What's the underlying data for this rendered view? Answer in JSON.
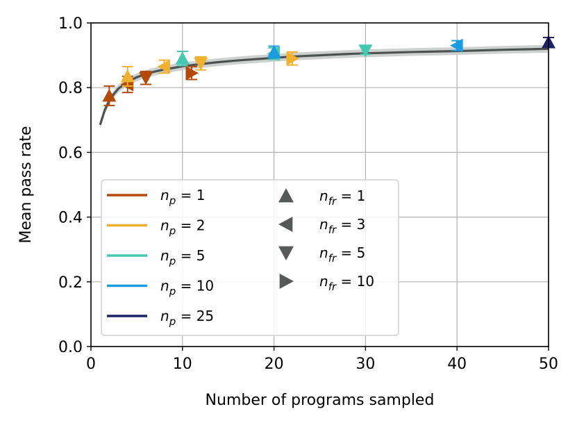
{
  "chart_data": {
    "type": "line",
    "xlabel": "Number of programs sampled",
    "ylabel": "Mean pass rate",
    "xlim": [
      0,
      50
    ],
    "ylim": [
      0.0,
      1.0
    ],
    "xticks": [
      0,
      10,
      20,
      30,
      40,
      50
    ],
    "yticks": [
      0.0,
      0.2,
      0.4,
      0.6,
      0.8,
      1.0
    ],
    "ytick_labels": [
      "0.0",
      "0.2",
      "0.4",
      "0.6",
      "0.8",
      "1.0"
    ],
    "grid": true,
    "legend_position": "lower-left",
    "trend": {
      "name": "fit",
      "color": "#4d5250",
      "band_color": "#c8cccb",
      "x": [
        1,
        1.5,
        2,
        2.5,
        3,
        4,
        5,
        6,
        7,
        8,
        9,
        10,
        12,
        14,
        16,
        18,
        20,
        22,
        25,
        28,
        30,
        35,
        40,
        45,
        50
      ],
      "y": [
        0.685,
        0.73,
        0.76,
        0.78,
        0.797,
        0.818,
        0.832,
        0.842,
        0.85,
        0.856,
        0.861,
        0.866,
        0.873,
        0.879,
        0.884,
        0.888,
        0.892,
        0.896,
        0.9,
        0.904,
        0.906,
        0.91,
        0.913,
        0.917,
        0.92
      ],
      "band": 0.012
    },
    "np_colors": {
      "1": "#b34a0a",
      "2": "#f0b030",
      "5": "#45c9b3",
      "10": "#1b9be0",
      "25": "#1a2466"
    },
    "points": [
      {
        "x": 2,
        "y": 0.775,
        "err": 0.03,
        "np": "1",
        "nfr": "1",
        "marker": "up"
      },
      {
        "x": 4,
        "y": 0.81,
        "err": 0.025,
        "np": "1",
        "nfr": "3",
        "marker": "left"
      },
      {
        "x": 6,
        "y": 0.83,
        "err": 0.02,
        "np": "1",
        "nfr": "5",
        "marker": "down"
      },
      {
        "x": 11,
        "y": 0.845,
        "err": 0.02,
        "np": "1",
        "nfr": "10",
        "marker": "right"
      },
      {
        "x": 4,
        "y": 0.835,
        "err": 0.03,
        "np": "2",
        "nfr": "1",
        "marker": "up"
      },
      {
        "x": 8,
        "y": 0.865,
        "err": 0.02,
        "np": "2",
        "nfr": "3",
        "marker": "left"
      },
      {
        "x": 12,
        "y": 0.875,
        "err": 0.02,
        "np": "2",
        "nfr": "5",
        "marker": "down"
      },
      {
        "x": 22,
        "y": 0.89,
        "err": 0.02,
        "np": "2",
        "nfr": "10",
        "marker": "right"
      },
      {
        "x": 10,
        "y": 0.89,
        "err": 0.022,
        "np": "5",
        "nfr": "1",
        "marker": "up"
      },
      {
        "x": 20,
        "y": 0.905,
        "err": 0.018,
        "np": "5",
        "nfr": "3",
        "marker": "left"
      },
      {
        "x": 30,
        "y": 0.915,
        "err": 0.012,
        "np": "5",
        "nfr": "5",
        "marker": "down"
      },
      {
        "x": 20,
        "y": 0.91,
        "err": 0.018,
        "np": "10",
        "nfr": "1",
        "marker": "up"
      },
      {
        "x": 40,
        "y": 0.93,
        "err": 0.015,
        "np": "10",
        "nfr": "3",
        "marker": "left"
      },
      {
        "x": 50,
        "y": 0.94,
        "err": 0.015,
        "np": "25",
        "nfr": "1",
        "marker": "up"
      }
    ],
    "legend_np": [
      {
        "label": "nₚ = 1",
        "key": "1"
      },
      {
        "label": "nₚ = 2",
        "key": "2"
      },
      {
        "label": "nₚ = 5",
        "key": "5"
      },
      {
        "label": "nₚ = 10",
        "key": "10"
      },
      {
        "label": "nₚ = 25",
        "key": "25"
      }
    ],
    "legend_nfr": [
      {
        "label": "n_fr = 1",
        "marker": "up"
      },
      {
        "label": "n_fr = 3",
        "marker": "left"
      },
      {
        "label": "n_fr = 5",
        "marker": "down"
      },
      {
        "label": "n_fr = 10",
        "marker": "right"
      }
    ],
    "legend_marker_color": "#555a59"
  }
}
